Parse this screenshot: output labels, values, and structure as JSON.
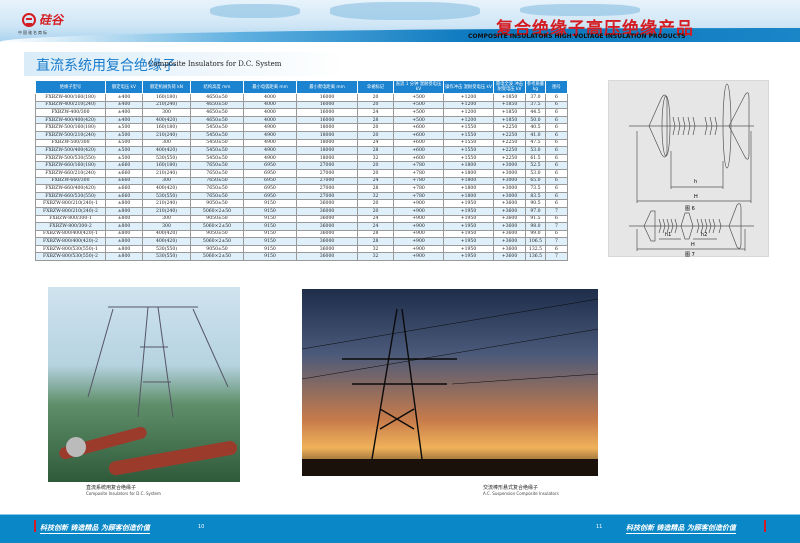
{
  "header": {
    "brand": "硅谷",
    "brand_sub": "中国驰名商标",
    "title_cn": "复合绝缘子高压绝缘产品",
    "title_en": "COMPOSITE INSULATORS HIGH VOLTAGE INSULATION PRODUCTS"
  },
  "section": {
    "title_cn": "直流系统用复合绝缘子",
    "title_en": "Composite Insulators for D.C. System"
  },
  "table": {
    "columns": [
      "绝缘子型号",
      "额定电压 kV",
      "额定机械负荷 kN",
      "结构高度 mm",
      "最小电弧距离 mm",
      "最小爬电距离 mm",
      "伞裙标记",
      "直流 1 分钟 湿耐受电压 kV",
      "操作冲击 湿耐受电压 kV",
      "雷电全波 冲击耐受电压 kV",
      "参考质量 kg",
      "图号"
    ],
    "rows": [
      [
        "FXBZW-400/160(180)",
        "±400",
        "160(180)",
        "4650±50",
        "4000",
        "16000",
        "20",
        "+500",
        "+1200",
        "+1850",
        "37.0",
        "6"
      ],
      [
        "FXBZW-400/210(240)",
        "±400",
        "210(240)",
        "4650±50",
        "4000",
        "16000",
        "20",
        "+500",
        "+1200",
        "+1850",
        "37.5",
        "6"
      ],
      [
        "FXBZW-400/300",
        "±400",
        "300",
        "4650±50",
        "4000",
        "16000",
        "24",
        "+500",
        "+1200",
        "+1850",
        "44.5",
        "6"
      ],
      [
        "FXBZW-400/400(420)",
        "±400",
        "400(420)",
        "4650±50",
        "4000",
        "16000",
        "28",
        "+500",
        "+1200",
        "+1850",
        "50.0",
        "6"
      ],
      [
        "FXBZW-500/160(180)",
        "±500",
        "160(180)",
        "5450±50",
        "4900",
        "18000",
        "20",
        "+600",
        "+1550",
        "+2250",
        "40.5",
        "6"
      ],
      [
        "FXBZW-500/210(240)",
        "±500",
        "210(240)",
        "5450±50",
        "4900",
        "18000",
        "20",
        "+600",
        "+1550",
        "+2250",
        "41.0",
        "6"
      ],
      [
        "FXBZW-500/300",
        "±500",
        "300",
        "5450±50",
        "4900",
        "18000",
        "24",
        "+600",
        "+1550",
        "+2250",
        "47.5",
        "6"
      ],
      [
        "FXBZW-500/400(420)",
        "±500",
        "400(420)",
        "5450±50",
        "4900",
        "18000",
        "28",
        "+600",
        "+1550",
        "+2250",
        "53.0",
        "6"
      ],
      [
        "FXBZW-500/530(550)",
        "±500",
        "530(550)",
        "5450±50",
        "4900",
        "18000",
        "32",
        "+600",
        "+1550",
        "+2250",
        "61.5",
        "6"
      ],
      [
        "FXBZW-660/160(180)",
        "±660",
        "160(180)",
        "7650±50",
        "6950",
        "27000",
        "20",
        "+780",
        "+1800",
        "+3000",
        "52.5",
        "6"
      ],
      [
        "FXBZW-660/210(240)",
        "±660",
        "210(240)",
        "7650±50",
        "6950",
        "27000",
        "20",
        "+780",
        "+1800",
        "+3000",
        "53.0",
        "6"
      ],
      [
        "FXBZW-660/300",
        "±660",
        "300",
        "7650±50",
        "6950",
        "27000",
        "24",
        "+780",
        "+1800",
        "+3000",
        "65.0",
        "6"
      ],
      [
        "FXBZW-660/400(420)",
        "±660",
        "400(420)",
        "7650±50",
        "6950",
        "27000",
        "28",
        "+780",
        "+1800",
        "+3000",
        "73.5",
        "6"
      ],
      [
        "FXBZW-660/530(550)",
        "±660",
        "530(550)",
        "7650±50",
        "6950",
        "27000",
        "32",
        "+780",
        "+1800",
        "+3000",
        "83.5",
        "6"
      ],
      [
        "FXBZW-800/210(240)-1",
        "±800",
        "210(240)",
        "9050±50",
        "9150",
        "36000",
        "20",
        "+900",
        "+1950",
        "+3600",
        "90.5",
        "6"
      ],
      [
        "FXBZW-800/210(240)-2",
        "±800",
        "210(240)",
        "5060×2±50",
        "9150",
        "36000",
        "20",
        "+900",
        "+1950",
        "+3600",
        "97.0",
        "7"
      ],
      [
        "FXBZW-800/300-1",
        "±800",
        "300",
        "9050±50",
        "9150",
        "36000",
        "24",
        "+900",
        "+1950",
        "+3600",
        "91.5",
        "6"
      ],
      [
        "FXBZW-800/300-2",
        "±800",
        "300",
        "5060×2±50",
        "9150",
        "36000",
        "24",
        "+900",
        "+1950",
        "+3600",
        "98.0",
        "7"
      ],
      [
        "FXBZW-800/400(420)-1",
        "±800",
        "400(420)",
        "9050±50",
        "9150",
        "36000",
        "28",
        "+900",
        "+1950",
        "+3600",
        "99.0",
        "6"
      ],
      [
        "FXBZW-800/400(420)-2",
        "±800",
        "400(420)",
        "5060×2±50",
        "9150",
        "36000",
        "28",
        "+900",
        "+1950",
        "+3600",
        "106.5",
        "7"
      ],
      [
        "FXBZW-800/530(550)-1",
        "±800",
        "530(550)",
        "9050±50",
        "9150",
        "36000",
        "32",
        "+900",
        "+1950",
        "+3600",
        "132.5",
        "6"
      ],
      [
        "FXBZW-800/530(550)-2",
        "±800",
        "530(550)",
        "5060×2±50",
        "9150",
        "36000",
        "32",
        "+900",
        "+1950",
        "+3600",
        "136.5",
        "7"
      ]
    ]
  },
  "figures": {
    "fig6": {
      "label": "图 6",
      "h": "h",
      "H": "H"
    },
    "fig7": {
      "label": "图 7",
      "h1": "h1",
      "h2": "h2",
      "H": "H"
    }
  },
  "photos": {
    "left": {
      "caption_cn": "直流系统用复合绝缘子",
      "caption_en": "Composite Insulators for D.C. System"
    },
    "right": {
      "caption_cn": "交流棒形悬式复合绝缘子",
      "caption_en": "A.C. Suspension Composite Insulators"
    }
  },
  "footer": {
    "slogan": "科技创新 铸造精品 为顾客创造价值",
    "page_left": "10",
    "page_right": "11"
  },
  "colors": {
    "brand_red": "#d51c22",
    "table_header": "#1b83cf",
    "footer_blue": "#0a87c6"
  }
}
